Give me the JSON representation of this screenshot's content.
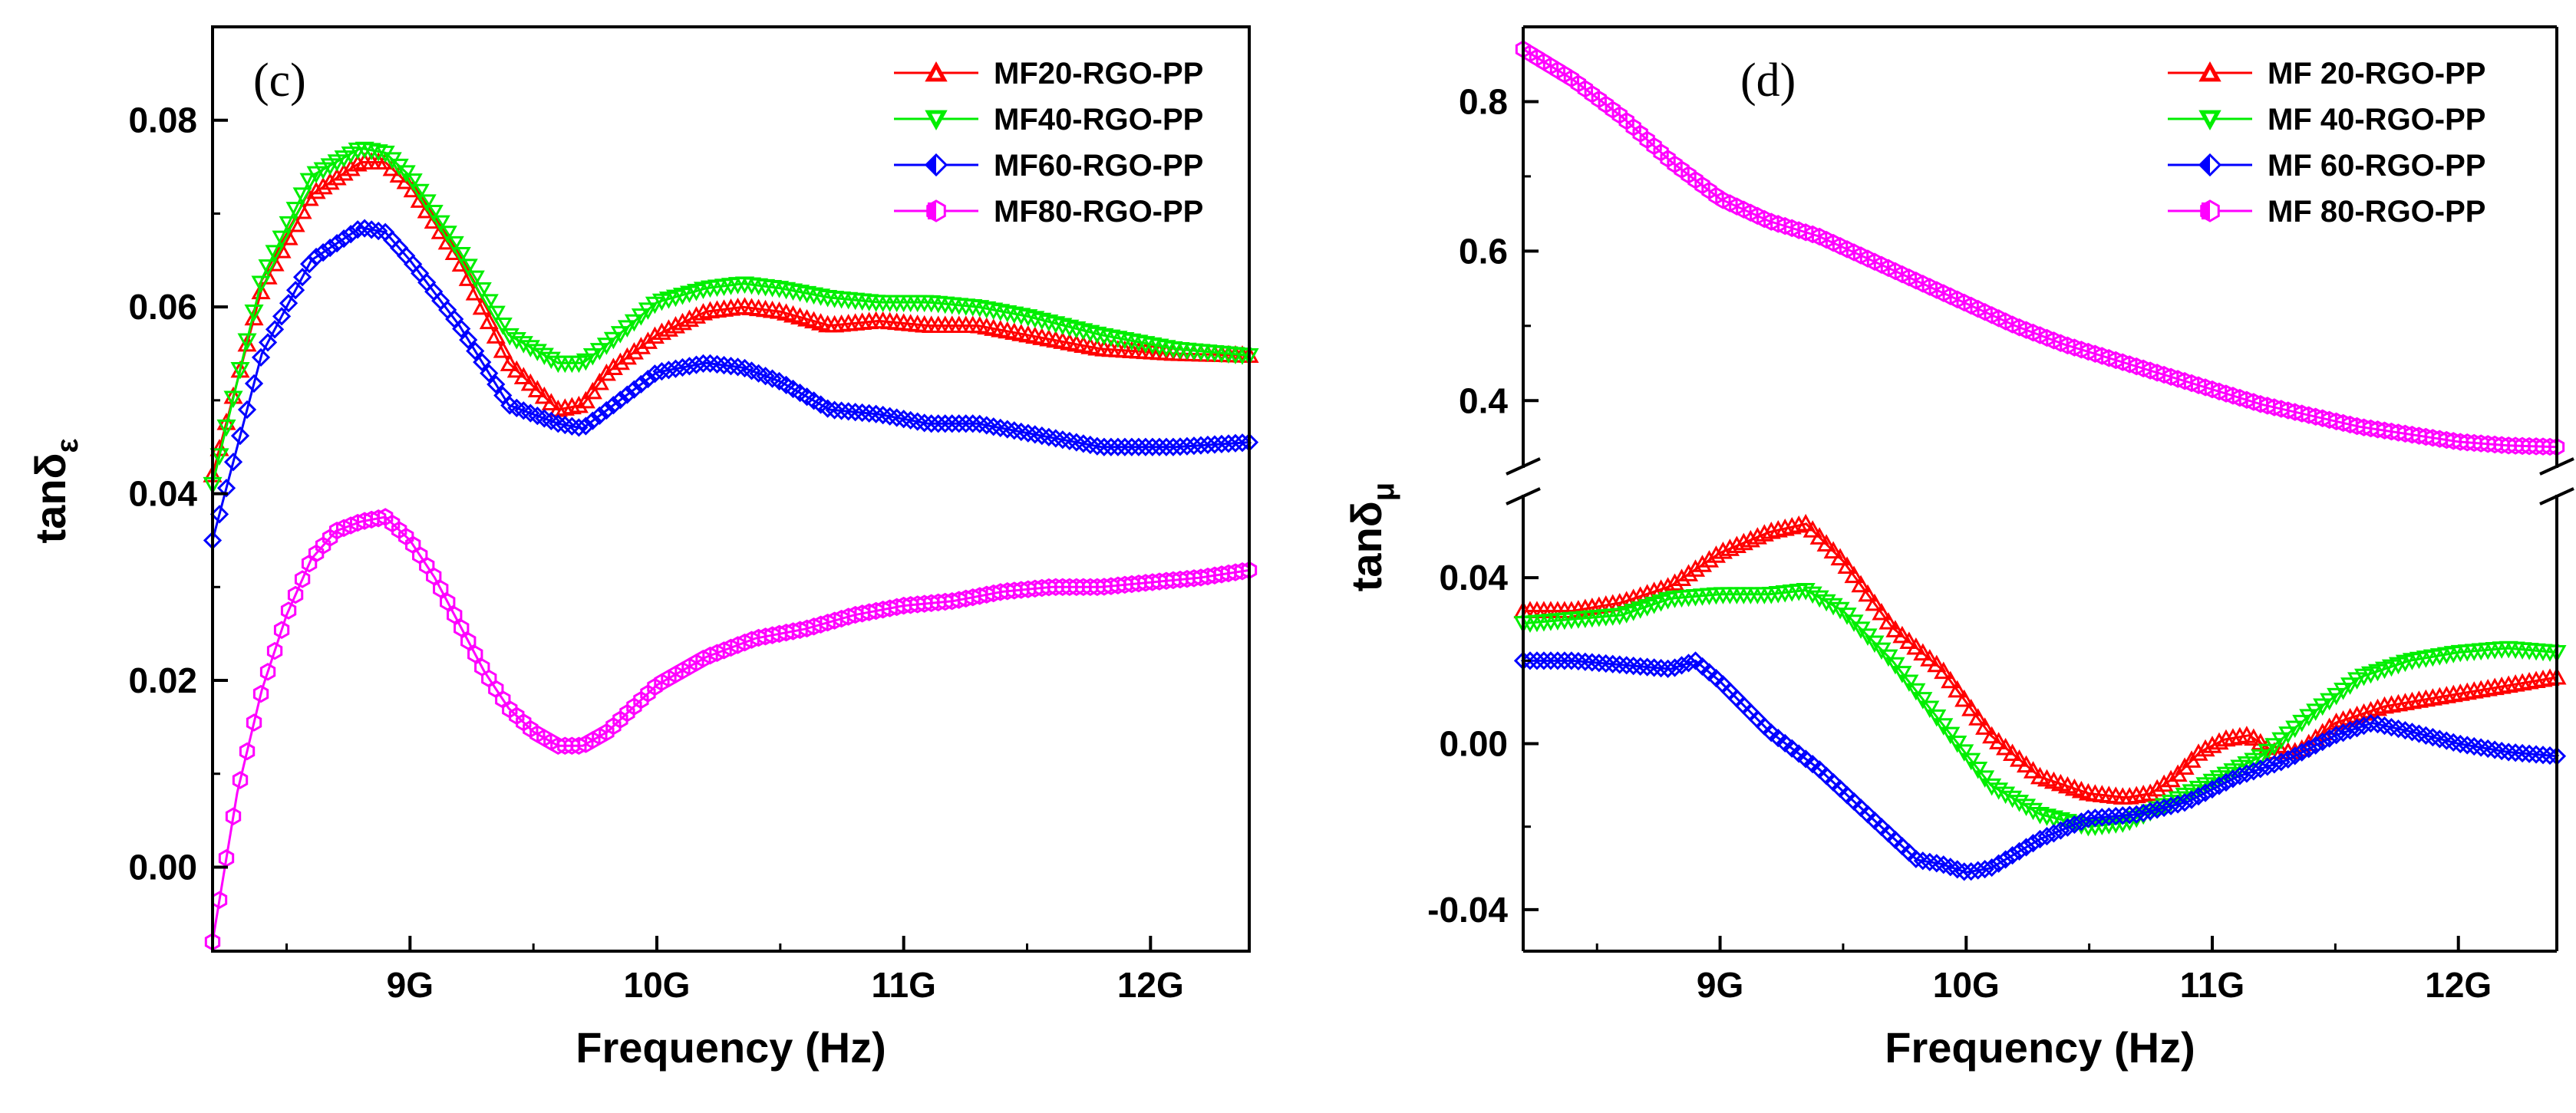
{
  "chart_data": [
    {
      "type": "line",
      "panel_label": "(c)",
      "xlabel": "Frequency (Hz)",
      "ylabel": "tanδ",
      "ylabel_sub": "ε",
      "xlim": [
        8.2,
        12.4
      ],
      "ylim": [
        -0.009,
        0.09
      ],
      "x_ticks": [
        9,
        10,
        11,
        12
      ],
      "x_tick_labels": [
        "9G",
        "10G",
        "11G",
        "12G"
      ],
      "y_ticks": [
        0.0,
        0.02,
        0.04,
        0.06,
        0.08
      ],
      "y_tick_labels": [
        "0.00",
        "0.02",
        "0.04",
        "0.06",
        "0.08"
      ],
      "legend_position": "top-right",
      "series": [
        {
          "name": "MF20-RGO-PP",
          "color": "#ff0000",
          "marker": "triangle-up",
          "x": [
            8.2,
            8.4,
            8.6,
            8.8,
            8.9,
            9.0,
            9.2,
            9.4,
            9.6,
            9.7,
            9.8,
            10.0,
            10.2,
            10.35,
            10.5,
            10.7,
            10.9,
            11.1,
            11.3,
            11.5,
            11.8,
            12.1,
            12.4
          ],
          "values": [
            0.042,
            0.062,
            0.072,
            0.0755,
            0.0755,
            0.073,
            0.065,
            0.054,
            0.049,
            0.0495,
            0.053,
            0.057,
            0.0595,
            0.06,
            0.0595,
            0.058,
            0.0585,
            0.058,
            0.058,
            0.057,
            0.0555,
            0.055,
            0.0548
          ]
        },
        {
          "name": "MF40-RGO-PP",
          "color": "#00ee00",
          "marker": "triangle-down",
          "x": [
            8.2,
            8.4,
            8.6,
            8.8,
            8.9,
            9.0,
            9.2,
            9.4,
            9.6,
            9.7,
            9.8,
            10.0,
            10.2,
            10.35,
            10.5,
            10.7,
            10.9,
            11.1,
            11.3,
            11.5,
            11.8,
            12.1,
            12.4
          ],
          "values": [
            0.041,
            0.063,
            0.074,
            0.077,
            0.0765,
            0.074,
            0.066,
            0.057,
            0.054,
            0.054,
            0.056,
            0.0605,
            0.062,
            0.0625,
            0.062,
            0.061,
            0.0605,
            0.0605,
            0.06,
            0.059,
            0.057,
            0.0555,
            0.0548
          ]
        },
        {
          "name": "MF60-RGO-PP",
          "color": "#0000ff",
          "marker": "diamond",
          "x": [
            8.2,
            8.4,
            8.6,
            8.8,
            8.9,
            9.0,
            9.2,
            9.4,
            9.6,
            9.7,
            9.8,
            10.0,
            10.2,
            10.35,
            10.5,
            10.7,
            10.9,
            11.1,
            11.3,
            11.5,
            11.8,
            12.1,
            12.4
          ],
          "values": [
            0.035,
            0.055,
            0.065,
            0.0685,
            0.068,
            0.065,
            0.058,
            0.0495,
            0.0475,
            0.047,
            0.049,
            0.053,
            0.054,
            0.0535,
            0.052,
            0.049,
            0.0485,
            0.0475,
            0.0475,
            0.0465,
            0.045,
            0.045,
            0.0455
          ]
        },
        {
          "name": "MF80-RGO-PP",
          "color": "#ff00ff",
          "marker": "hexagon",
          "x": [
            8.2,
            8.3,
            8.4,
            8.5,
            8.6,
            8.7,
            8.8,
            8.9,
            9.0,
            9.1,
            9.2,
            9.3,
            9.4,
            9.5,
            9.6,
            9.7,
            9.8,
            9.9,
            10.0,
            10.2,
            10.4,
            10.6,
            10.8,
            11.0,
            11.2,
            11.4,
            11.6,
            11.8,
            12.0,
            12.2,
            12.4
          ],
          "values": [
            -0.008,
            0.008,
            0.019,
            0.027,
            0.033,
            0.036,
            0.037,
            0.0375,
            0.035,
            0.031,
            0.026,
            0.021,
            0.017,
            0.0145,
            0.013,
            0.013,
            0.0145,
            0.017,
            0.0195,
            0.0225,
            0.0245,
            0.0255,
            0.027,
            0.028,
            0.0285,
            0.0295,
            0.03,
            0.03,
            0.0305,
            0.031,
            0.0318
          ]
        }
      ]
    },
    {
      "type": "line",
      "panel_label": "(d)",
      "xlabel": "Frequency (Hz)",
      "ylabel": "tanδ",
      "ylabel_sub": "μ",
      "xlim": [
        8.2,
        12.4
      ],
      "axis_break": true,
      "ylim_upper": [
        0.31,
        0.9
      ],
      "ylim_lower": [
        -0.05,
        0.06
      ],
      "x_ticks": [
        9,
        10,
        11,
        12
      ],
      "x_tick_labels": [
        "9G",
        "10G",
        "11G",
        "12G"
      ],
      "y_ticks_upper": [
        0.4,
        0.6,
        0.8
      ],
      "y_tick_labels_upper": [
        "0.4",
        "0.6",
        "0.8"
      ],
      "y_ticks_lower": [
        -0.04,
        0.0,
        0.04
      ],
      "y_tick_labels_lower": [
        "-0.04",
        "0.00",
        "0.04"
      ],
      "legend_position": "top-right",
      "series": [
        {
          "name": "MF 20-RGO-PP",
          "color": "#ff0000",
          "marker": "triangle-up",
          "segment": "lower",
          "x": [
            8.2,
            8.4,
            8.6,
            8.8,
            9.0,
            9.2,
            9.35,
            9.5,
            9.7,
            9.9,
            10.1,
            10.3,
            10.5,
            10.65,
            10.75,
            10.85,
            10.95,
            11.05,
            11.15,
            11.25,
            11.35,
            11.5,
            11.7,
            11.9,
            12.1,
            12.4
          ],
          "values": [
            0.032,
            0.032,
            0.034,
            0.038,
            0.046,
            0.051,
            0.053,
            0.044,
            0.028,
            0.018,
            0.002,
            -0.008,
            -0.012,
            -0.013,
            -0.012,
            -0.008,
            -0.002,
            0.001,
            0.002,
            -0.002,
            -0.002,
            0.005,
            0.009,
            0.011,
            0.013,
            0.016
          ]
        },
        {
          "name": "MF 40-RGO-PP",
          "color": "#00ee00",
          "marker": "triangle-down",
          "segment": "lower",
          "x": [
            8.2,
            8.4,
            8.6,
            8.8,
            9.0,
            9.2,
            9.35,
            9.5,
            9.7,
            9.9,
            10.1,
            10.3,
            10.5,
            10.65,
            10.8,
            11.0,
            11.2,
            11.4,
            11.6,
            11.8,
            12.0,
            12.2,
            12.4
          ],
          "values": [
            0.029,
            0.03,
            0.031,
            0.035,
            0.036,
            0.036,
            0.037,
            0.032,
            0.02,
            0.005,
            -0.01,
            -0.017,
            -0.02,
            -0.019,
            -0.015,
            -0.009,
            -0.003,
            0.007,
            0.016,
            0.02,
            0.022,
            0.023,
            0.022
          ]
        },
        {
          "name": "MF 60-RGO-PP",
          "color": "#0000ff",
          "marker": "diamond",
          "segment": "lower",
          "x": [
            8.2,
            8.4,
            8.6,
            8.8,
            8.9,
            9.0,
            9.2,
            9.4,
            9.6,
            9.8,
            9.9,
            10.0,
            10.1,
            10.3,
            10.5,
            10.7,
            10.9,
            11.1,
            11.3,
            11.5,
            11.65,
            11.8,
            12.0,
            12.2,
            12.4
          ],
          "values": [
            0.02,
            0.02,
            0.019,
            0.018,
            0.02,
            0.015,
            0.003,
            -0.006,
            -0.017,
            -0.028,
            -0.029,
            -0.031,
            -0.03,
            -0.023,
            -0.018,
            -0.017,
            -0.014,
            -0.008,
            -0.004,
            0.002,
            0.005,
            0.003,
            0.0,
            -0.002,
            -0.003
          ]
        },
        {
          "name": "MF 80-RGO-PP",
          "color": "#ff00ff",
          "marker": "hexagon",
          "segment": "upper",
          "x": [
            8.2,
            8.4,
            8.6,
            8.8,
            9.0,
            9.2,
            9.4,
            9.6,
            9.8,
            10.0,
            10.2,
            10.4,
            10.6,
            10.8,
            11.0,
            11.2,
            11.4,
            11.6,
            11.8,
            12.0,
            12.2,
            12.4
          ],
          "values": [
            0.87,
            0.83,
            0.78,
            0.72,
            0.67,
            0.64,
            0.62,
            0.59,
            0.56,
            0.53,
            0.5,
            0.475,
            0.455,
            0.435,
            0.415,
            0.395,
            0.38,
            0.365,
            0.355,
            0.345,
            0.34,
            0.338
          ]
        }
      ]
    }
  ]
}
